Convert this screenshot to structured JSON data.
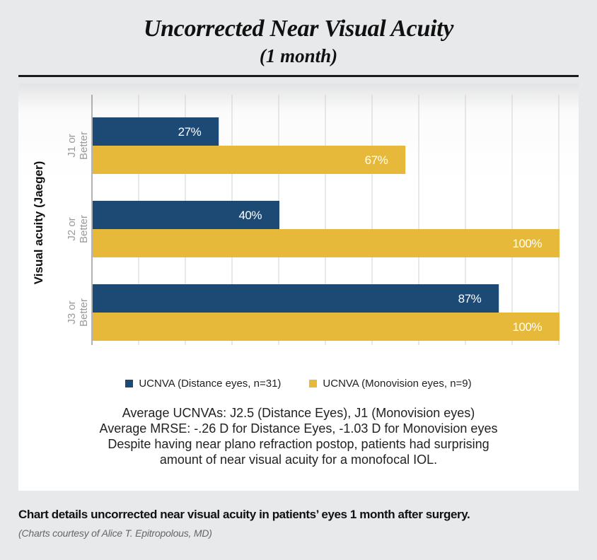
{
  "chart_data": {
    "type": "bar",
    "orientation": "horizontal",
    "title": "Uncorrected Near Visual Acuity",
    "subtitle": "(1 month)",
    "ylabel": "Visual acuity (Jaeger)",
    "xlabel": "",
    "categories": [
      [
        "J1 or",
        "Better"
      ],
      [
        "J2 or",
        "Better"
      ],
      [
        "J3 or",
        "Better"
      ]
    ],
    "series": [
      {
        "name": "UCNVA (Distance eyes, n=31)",
        "color": "#1c4a75",
        "values": [
          27,
          40,
          87
        ],
        "labels": [
          "27%",
          "40%",
          "87%"
        ]
      },
      {
        "name": "UCNVA (Monovision eyes, n=9)",
        "color": "#e6b93a",
        "values": [
          67,
          100,
          100
        ],
        "labels": [
          "67%",
          "100%",
          "100%"
        ]
      }
    ],
    "xlim": [
      0,
      100
    ],
    "grid": true,
    "legend": "bottom"
  },
  "notes": [
    "Average UCNVAs: J2.5 (Distance Eyes), J1 (Monovision eyes)",
    "Average MRSE: -.26 D for Distance Eyes, -1.03 D for Monovision eyes",
    "Despite having near plano refraction postop, patients had surprising",
    "amount of near visual acuity for a monofocal IOL."
  ],
  "caption": "Chart details uncorrected near visual acuity in patients’ eyes 1 month after surgery.",
  "credit": "(Charts courtesy of Alice T. Epitropolous, MD)"
}
